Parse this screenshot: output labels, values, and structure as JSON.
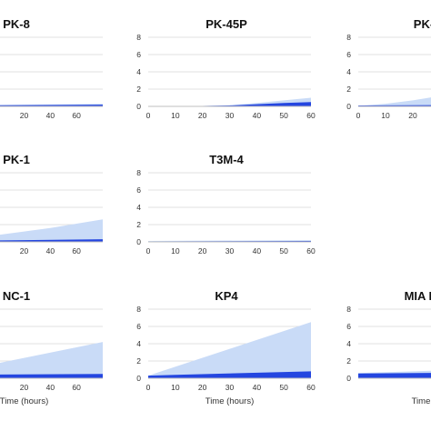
{
  "colors": {
    "light": "#c9dbf7",
    "dark": "#2446e0",
    "grid": "#d9d9d9",
    "axis": "#bfbfbf"
  },
  "chart_data": [
    {
      "type": "area",
      "title": "PK-8",
      "xlabel": "",
      "x_ticks": [
        "20",
        "40",
        "60"
      ],
      "y_ticks": [],
      "xlim": [
        0,
        60
      ],
      "ylim": [
        0,
        8
      ],
      "series": [
        {
          "x": [
            0,
            60
          ],
          "y": [
            0.1,
            0.3
          ]
        },
        {
          "x": [
            0,
            60
          ],
          "y": [
            0.1,
            0.2
          ]
        }
      ]
    },
    {
      "type": "area",
      "title": "PK-45P",
      "xlabel": "",
      "x_ticks": [
        "0",
        "10",
        "20",
        "30",
        "40",
        "50",
        "60"
      ],
      "y_ticks": [
        "0",
        "2",
        "4",
        "6",
        "8"
      ],
      "xlim": [
        0,
        60
      ],
      "ylim": [
        0,
        8
      ],
      "series": [
        {
          "x": [
            0,
            20,
            30,
            40,
            50,
            60
          ],
          "y": [
            0.05,
            0.05,
            0.15,
            0.4,
            0.7,
            1.0
          ]
        },
        {
          "x": [
            0,
            20,
            30,
            40,
            50,
            60
          ],
          "y": [
            0.05,
            0.05,
            0.1,
            0.25,
            0.4,
            0.5
          ]
        }
      ]
    },
    {
      "type": "area",
      "title": "PK-",
      "xlabel": "",
      "x_ticks": [
        "0",
        "10",
        "20"
      ],
      "y_ticks": [
        "0",
        "2",
        "4",
        "6",
        "8"
      ],
      "xlim": [
        0,
        60
      ],
      "ylim": [
        0,
        8
      ],
      "series": [
        {
          "x": [
            0,
            10,
            20,
            30,
            40,
            50,
            60
          ],
          "y": [
            0.05,
            0.3,
            0.7,
            1.2,
            1.8,
            2.4,
            3.0
          ]
        },
        {
          "x": [
            0,
            60
          ],
          "y": [
            0.1,
            0.2
          ]
        }
      ]
    },
    {
      "type": "area",
      "title": "PK-1",
      "xlabel": "",
      "x_ticks": [
        "20",
        "40",
        "60"
      ],
      "y_ticks": [],
      "xlim": [
        0,
        60
      ],
      "ylim": [
        0,
        8
      ],
      "series": [
        {
          "x": [
            0,
            20,
            40,
            60
          ],
          "y": [
            0.1,
            0.8,
            1.6,
            2.6
          ]
        },
        {
          "x": [
            0,
            30,
            60
          ],
          "y": [
            0.1,
            0.2,
            0.3
          ]
        }
      ]
    },
    {
      "type": "area",
      "title": "T3M-4",
      "xlabel": "",
      "x_ticks": [
        "0",
        "10",
        "20",
        "30",
        "40",
        "50",
        "60"
      ],
      "y_ticks": [
        "0",
        "2",
        "4",
        "6",
        "8"
      ],
      "xlim": [
        0,
        60
      ],
      "ylim": [
        0,
        8
      ],
      "series": [
        {
          "x": [
            0,
            60
          ],
          "y": [
            0.1,
            0.2
          ]
        },
        {
          "x": [
            0,
            60
          ],
          "y": [
            0.05,
            0.1
          ]
        }
      ]
    },
    {
      "type": "area",
      "title": "NC-1",
      "xlabel": "Time (hours)",
      "x_ticks": [
        "20",
        "40",
        "60"
      ],
      "y_ticks": [],
      "xlim": [
        0,
        60
      ],
      "ylim": [
        0,
        8
      ],
      "series": [
        {
          "x": [
            0,
            60
          ],
          "y": [
            0.5,
            4.2
          ]
        },
        {
          "x": [
            0,
            60
          ],
          "y": [
            0.4,
            0.5
          ]
        }
      ]
    },
    {
      "type": "area",
      "title": "KP4",
      "xlabel": "Time (hours)",
      "x_ticks": [
        "0",
        "10",
        "20",
        "30",
        "40",
        "50",
        "60"
      ],
      "y_ticks": [
        "0",
        "2",
        "4",
        "6",
        "8"
      ],
      "xlim": [
        0,
        60
      ],
      "ylim": [
        0,
        8
      ],
      "series": [
        {
          "x": [
            0,
            60
          ],
          "y": [
            0.3,
            6.5
          ]
        },
        {
          "x": [
            0,
            10,
            60
          ],
          "y": [
            0.3,
            0.4,
            0.8
          ]
        }
      ]
    },
    {
      "type": "area",
      "title": "MIA Pa",
      "xlabel": "Time",
      "x_ticks": [],
      "y_ticks": [
        "0",
        "2",
        "4",
        "6",
        "8"
      ],
      "xlim": [
        0,
        60
      ],
      "ylim": [
        0,
        8
      ],
      "series": [
        {
          "x": [
            0,
            60
          ],
          "y": [
            0.6,
            1.2
          ]
        },
        {
          "x": [
            0,
            60
          ],
          "y": [
            0.55,
            0.7
          ]
        }
      ]
    }
  ]
}
